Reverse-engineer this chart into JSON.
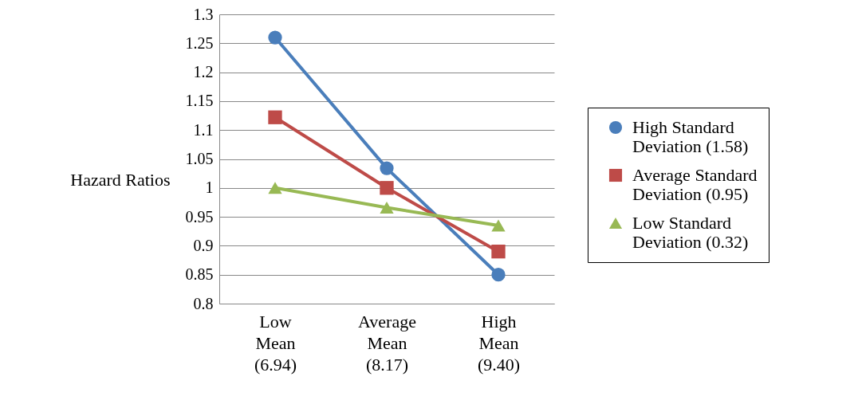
{
  "chart_data": {
    "type": "line",
    "ylabel": "Hazard Ratios",
    "categories": [
      "Low Mean (6.94)",
      "Average Mean (8.17)",
      "High Mean (9.40)"
    ],
    "series": [
      {
        "name": "High Standard Deviation (1.58)",
        "color": "#4a7ebb",
        "marker": "circle",
        "values": [
          1.26,
          1.034,
          0.85
        ]
      },
      {
        "name": "Average Standard Deviation (0.95)",
        "color": "#be4b48",
        "marker": "square",
        "values": [
          1.122,
          1.0,
          0.89
        ]
      },
      {
        "name": "Low Standard Deviation (0.32)",
        "color": "#98b954",
        "marker": "triangle",
        "values": [
          1.0,
          0.966,
          0.935
        ]
      }
    ],
    "ylim": [
      0.8,
      1.3
    ],
    "yticks": [
      0.8,
      0.85,
      0.9,
      0.95,
      1,
      1.05,
      1.1,
      1.15,
      1.2,
      1.25,
      1.3
    ],
    "grid": "y",
    "legend": "right"
  }
}
